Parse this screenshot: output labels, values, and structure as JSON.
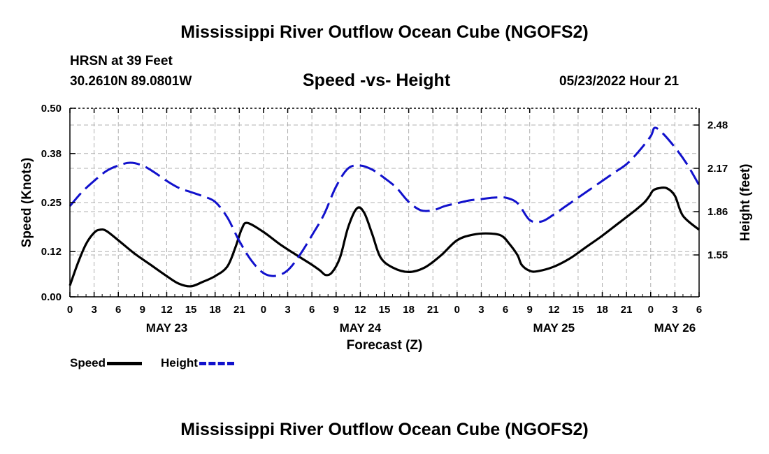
{
  "header": {
    "title": "Mississippi River Outflow Ocean Cube (NGOFS2)",
    "station": "HRSN at 39 Feet",
    "coords": "30.2610N  89.0801W",
    "chart_title": "Speed -vs- Height",
    "datetime": "05/23/2022 Hour 21"
  },
  "footer": {
    "title": "Mississippi River Outflow Ocean Cube (NGOFS2)"
  },
  "colors": {
    "speed": "#000000",
    "height": "#1111cc",
    "grid": "#b0b0b0"
  },
  "chart_data": {
    "type": "line",
    "title": "Speed -vs- Height",
    "xlabel": "Forecast (Z)",
    "ylabel": "Speed (Knots)",
    "y2label": "Height (feet)",
    "xlim": [
      0,
      78
    ],
    "ylim": [
      0,
      0.5
    ],
    "y2lim": [
      1.25,
      2.6
    ],
    "x_ticks": [
      0,
      3,
      6,
      9,
      12,
      15,
      18,
      21,
      24,
      27,
      30,
      33,
      36,
      39,
      42,
      45,
      48,
      51,
      54,
      57,
      60,
      63,
      66,
      69,
      72,
      75,
      78
    ],
    "x_tick_labels": [
      "0",
      "3",
      "6",
      "9",
      "12",
      "15",
      "18",
      "21",
      "0",
      "3",
      "6",
      "9",
      "12",
      "15",
      "18",
      "21",
      "0",
      "3",
      "6",
      "9",
      "12",
      "15",
      "18",
      "21",
      "0",
      "3",
      "6"
    ],
    "y_ticks": [
      0,
      0.12,
      0.25,
      0.38,
      0.5
    ],
    "y_tick_labels": [
      "0.00",
      "0.12",
      "0.25",
      "0.38",
      "0.50"
    ],
    "y2_ticks": [
      1.55,
      1.86,
      2.17,
      2.48
    ],
    "y2_tick_labels": [
      "1.55",
      "1.86",
      "2.17",
      "2.48"
    ],
    "day_labels": [
      {
        "x": 12,
        "label": "MAY 23"
      },
      {
        "x": 36,
        "label": "MAY 24"
      },
      {
        "x": 60,
        "label": "MAY 25"
      },
      {
        "x": 75,
        "label": "MAY 26"
      }
    ],
    "grid": true,
    "series": [
      {
        "name": "Speed",
        "axis": "left",
        "style": "solid",
        "x": [
          0,
          1,
          2,
          3,
          3.7,
          4.5,
          6,
          8,
          10,
          12,
          13.5,
          15,
          16.5,
          18,
          19.5,
          20.5,
          21.3,
          22,
          24,
          26,
          28,
          30,
          31,
          31.7,
          32.5,
          33.5,
          34.5,
          35.6,
          36.5,
          37.5,
          38.5,
          40,
          42,
          44,
          46,
          48,
          50,
          52,
          53.5,
          54.5,
          55.5,
          56,
          57,
          58,
          60,
          62,
          64,
          66,
          68,
          70,
          71.2,
          71.8,
          72.3,
          73,
          74,
          75,
          76,
          78
        ],
        "y": [
          0.03,
          0.09,
          0.14,
          0.17,
          0.178,
          0.175,
          0.15,
          0.115,
          0.085,
          0.055,
          0.035,
          0.028,
          0.04,
          0.055,
          0.08,
          0.13,
          0.18,
          0.196,
          0.172,
          0.14,
          0.112,
          0.085,
          0.07,
          0.058,
          0.065,
          0.105,
          0.185,
          0.235,
          0.222,
          0.165,
          0.105,
          0.078,
          0.066,
          0.078,
          0.11,
          0.15,
          0.165,
          0.168,
          0.162,
          0.14,
          0.11,
          0.085,
          0.069,
          0.068,
          0.08,
          0.102,
          0.132,
          0.162,
          0.195,
          0.228,
          0.25,
          0.266,
          0.282,
          0.288,
          0.288,
          0.268,
          0.215,
          0.178
        ]
      },
      {
        "name": "Height",
        "axis": "right",
        "style": "dashed",
        "x": [
          0,
          1.5,
          3,
          4.5,
          6,
          7.5,
          9,
          10.5,
          12,
          13.5,
          15,
          16.5,
          18,
          19.5,
          21,
          22.5,
          24,
          25.5,
          27,
          28.5,
          30,
          31.5,
          33,
          34.5,
          36,
          37.5,
          39,
          40.5,
          42,
          43.5,
          45,
          46.5,
          48,
          49.5,
          51,
          52.5,
          54,
          55.5,
          57,
          58.5,
          60,
          61.5,
          63,
          64.5,
          66,
          67.5,
          69,
          70.5,
          72,
          72.5,
          73.5,
          75,
          76.5,
          78
        ],
        "y": [
          1.9,
          2.0,
          2.08,
          2.15,
          2.19,
          2.21,
          2.19,
          2.14,
          2.08,
          2.03,
          2.0,
          1.97,
          1.93,
          1.82,
          1.65,
          1.51,
          1.42,
          1.4,
          1.44,
          1.55,
          1.69,
          1.84,
          2.04,
          2.17,
          2.19,
          2.16,
          2.1,
          2.03,
          1.93,
          1.87,
          1.87,
          1.9,
          1.92,
          1.94,
          1.95,
          1.96,
          1.96,
          1.92,
          1.8,
          1.79,
          1.84,
          1.9,
          1.96,
          2.02,
          2.08,
          2.14,
          2.2,
          2.29,
          2.4,
          2.46,
          2.42,
          2.32,
          2.2,
          2.05
        ]
      }
    ],
    "legend": [
      {
        "name": "Speed",
        "style": "solid"
      },
      {
        "name": "Height",
        "style": "dashed"
      }
    ]
  }
}
